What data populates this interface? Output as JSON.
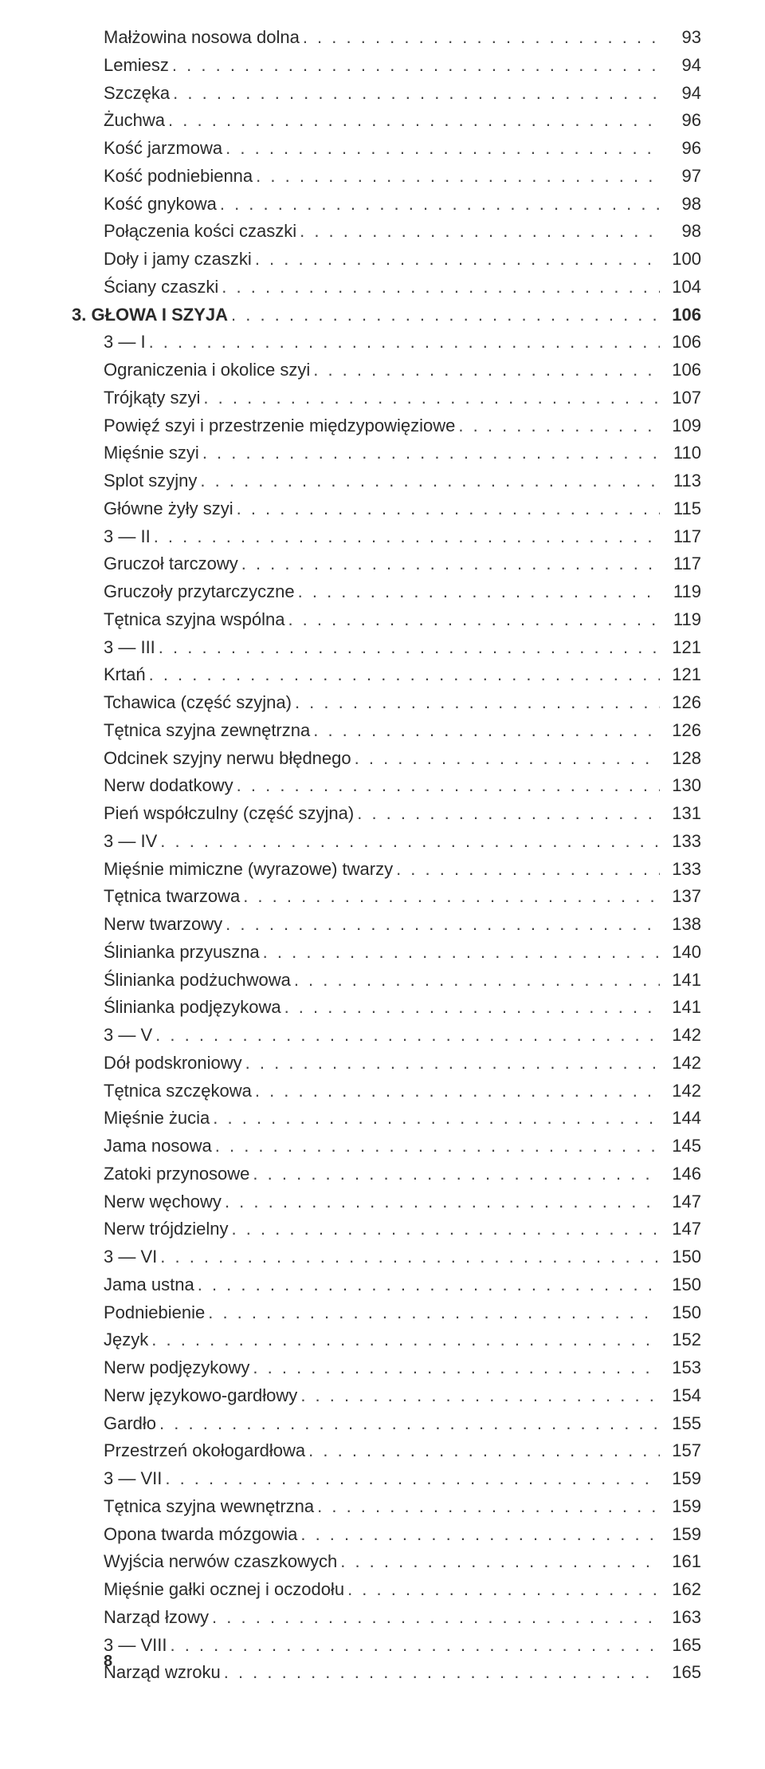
{
  "page_number": "8",
  "entries": [
    {
      "level": 2,
      "label": "Małżowina nosowa dolna",
      "page": "93"
    },
    {
      "level": 2,
      "label": "Lemiesz",
      "page": "94"
    },
    {
      "level": 2,
      "label": "Szczęka",
      "page": "94"
    },
    {
      "level": 2,
      "label": "Żuchwa",
      "page": "96"
    },
    {
      "level": 2,
      "label": "Kość jarzmowa",
      "page": "96"
    },
    {
      "level": 2,
      "label": "Kość podniebienna",
      "page": "97"
    },
    {
      "level": 2,
      "label": "Kość gnykowa",
      "page": "98"
    },
    {
      "level": 2,
      "label": "Połączenia kości czaszki",
      "page": "98"
    },
    {
      "level": 2,
      "label": "Doły i jamy czaszki",
      "page": "100"
    },
    {
      "level": 2,
      "label": "Ściany czaszki",
      "page": "104"
    },
    {
      "level": 1,
      "label": "3. GŁOWA I SZYJA",
      "page": "106",
      "section": true
    },
    {
      "level": 2,
      "label": "3 — I",
      "page": "106"
    },
    {
      "level": 3,
      "label": "Ograniczenia i okolice szyi",
      "page": "106"
    },
    {
      "level": 3,
      "label": "Trójkąty szyi",
      "page": "107"
    },
    {
      "level": 3,
      "label": "Powięź szyi i przestrzenie międzypowięziowe",
      "page": "109"
    },
    {
      "level": 3,
      "label": "Mięśnie szyi",
      "page": "110"
    },
    {
      "level": 3,
      "label": "Splot szyjny",
      "page": "113"
    },
    {
      "level": 3,
      "label": "Główne żyły szyi",
      "page": "115"
    },
    {
      "level": 2,
      "label": "3 — II",
      "page": "117"
    },
    {
      "level": 3,
      "label": "Gruczoł tarczowy",
      "page": "117"
    },
    {
      "level": 3,
      "label": "Gruczoły przytarczyczne",
      "page": "119"
    },
    {
      "level": 3,
      "label": "Tętnica szyjna wspólna",
      "page": "119"
    },
    {
      "level": 2,
      "label": "3 — III",
      "page": "121"
    },
    {
      "level": 3,
      "label": "Krtań",
      "page": "121"
    },
    {
      "level": 3,
      "label": "Tchawica (część szyjna)",
      "page": "126"
    },
    {
      "level": 3,
      "label": "Tętnica szyjna zewnętrzna",
      "page": "126"
    },
    {
      "level": 3,
      "label": "Odcinek szyjny nerwu błędnego",
      "page": "128"
    },
    {
      "level": 3,
      "label": "Nerw dodatkowy",
      "page": "130"
    },
    {
      "level": 3,
      "label": "Pień współczulny (część szyjna)",
      "page": "131"
    },
    {
      "level": 2,
      "label": "3 — IV",
      "page": "133"
    },
    {
      "level": 3,
      "label": "Mięśnie mimiczne (wyrazowe) twarzy",
      "page": "133"
    },
    {
      "level": 3,
      "label": "Tętnica twarzowa",
      "page": "137"
    },
    {
      "level": 3,
      "label": "Nerw twarzowy",
      "page": "138"
    },
    {
      "level": 3,
      "label": "Ślinianka przyuszna",
      "page": "140"
    },
    {
      "level": 3,
      "label": "Ślinianka podżuchwowa",
      "page": "141"
    },
    {
      "level": 3,
      "label": "Ślinianka podjęzykowa",
      "page": "141"
    },
    {
      "level": 2,
      "label": "3 — V",
      "page": "142"
    },
    {
      "level": 3,
      "label": "Dół podskroniowy",
      "page": "142"
    },
    {
      "level": 3,
      "label": "Tętnica szczękowa",
      "page": "142"
    },
    {
      "level": 3,
      "label": "Mięśnie żucia",
      "page": "144"
    },
    {
      "level": 3,
      "label": "Jama nosowa",
      "page": "145"
    },
    {
      "level": 3,
      "label": "Zatoki przynosowe",
      "page": "146"
    },
    {
      "level": 3,
      "label": "Nerw węchowy",
      "page": "147"
    },
    {
      "level": 3,
      "label": "Nerw trójdzielny",
      "page": "147"
    },
    {
      "level": 2,
      "label": "3 — VI",
      "page": "150"
    },
    {
      "level": 3,
      "label": "Jama ustna",
      "page": "150"
    },
    {
      "level": 3,
      "label": "Podniebienie",
      "page": "150"
    },
    {
      "level": 3,
      "label": "Język",
      "page": "152"
    },
    {
      "level": 3,
      "label": "Nerw podjęzykowy",
      "page": "153"
    },
    {
      "level": 3,
      "label": "Nerw językowo-gardłowy",
      "page": "154"
    },
    {
      "level": 3,
      "label": "Gardło",
      "page": "155"
    },
    {
      "level": 3,
      "label": "Przestrzeń okołogardłowa",
      "page": "157"
    },
    {
      "level": 2,
      "label": "3 — VII",
      "page": "159"
    },
    {
      "level": 3,
      "label": "Tętnica szyjna wewnętrzna",
      "page": "159"
    },
    {
      "level": 3,
      "label": "Opona twarda mózgowia",
      "page": "159"
    },
    {
      "level": 3,
      "label": "Wyjścia nerwów czaszkowych",
      "page": "161"
    },
    {
      "level": 3,
      "label": "Mięśnie gałki ocznej i oczodołu",
      "page": "162"
    },
    {
      "level": 3,
      "label": "Narząd łzowy",
      "page": "163"
    },
    {
      "level": 2,
      "label": "3 — VIII",
      "page": "165"
    },
    {
      "level": 3,
      "label": "Narząd wzroku",
      "page": "165"
    }
  ]
}
